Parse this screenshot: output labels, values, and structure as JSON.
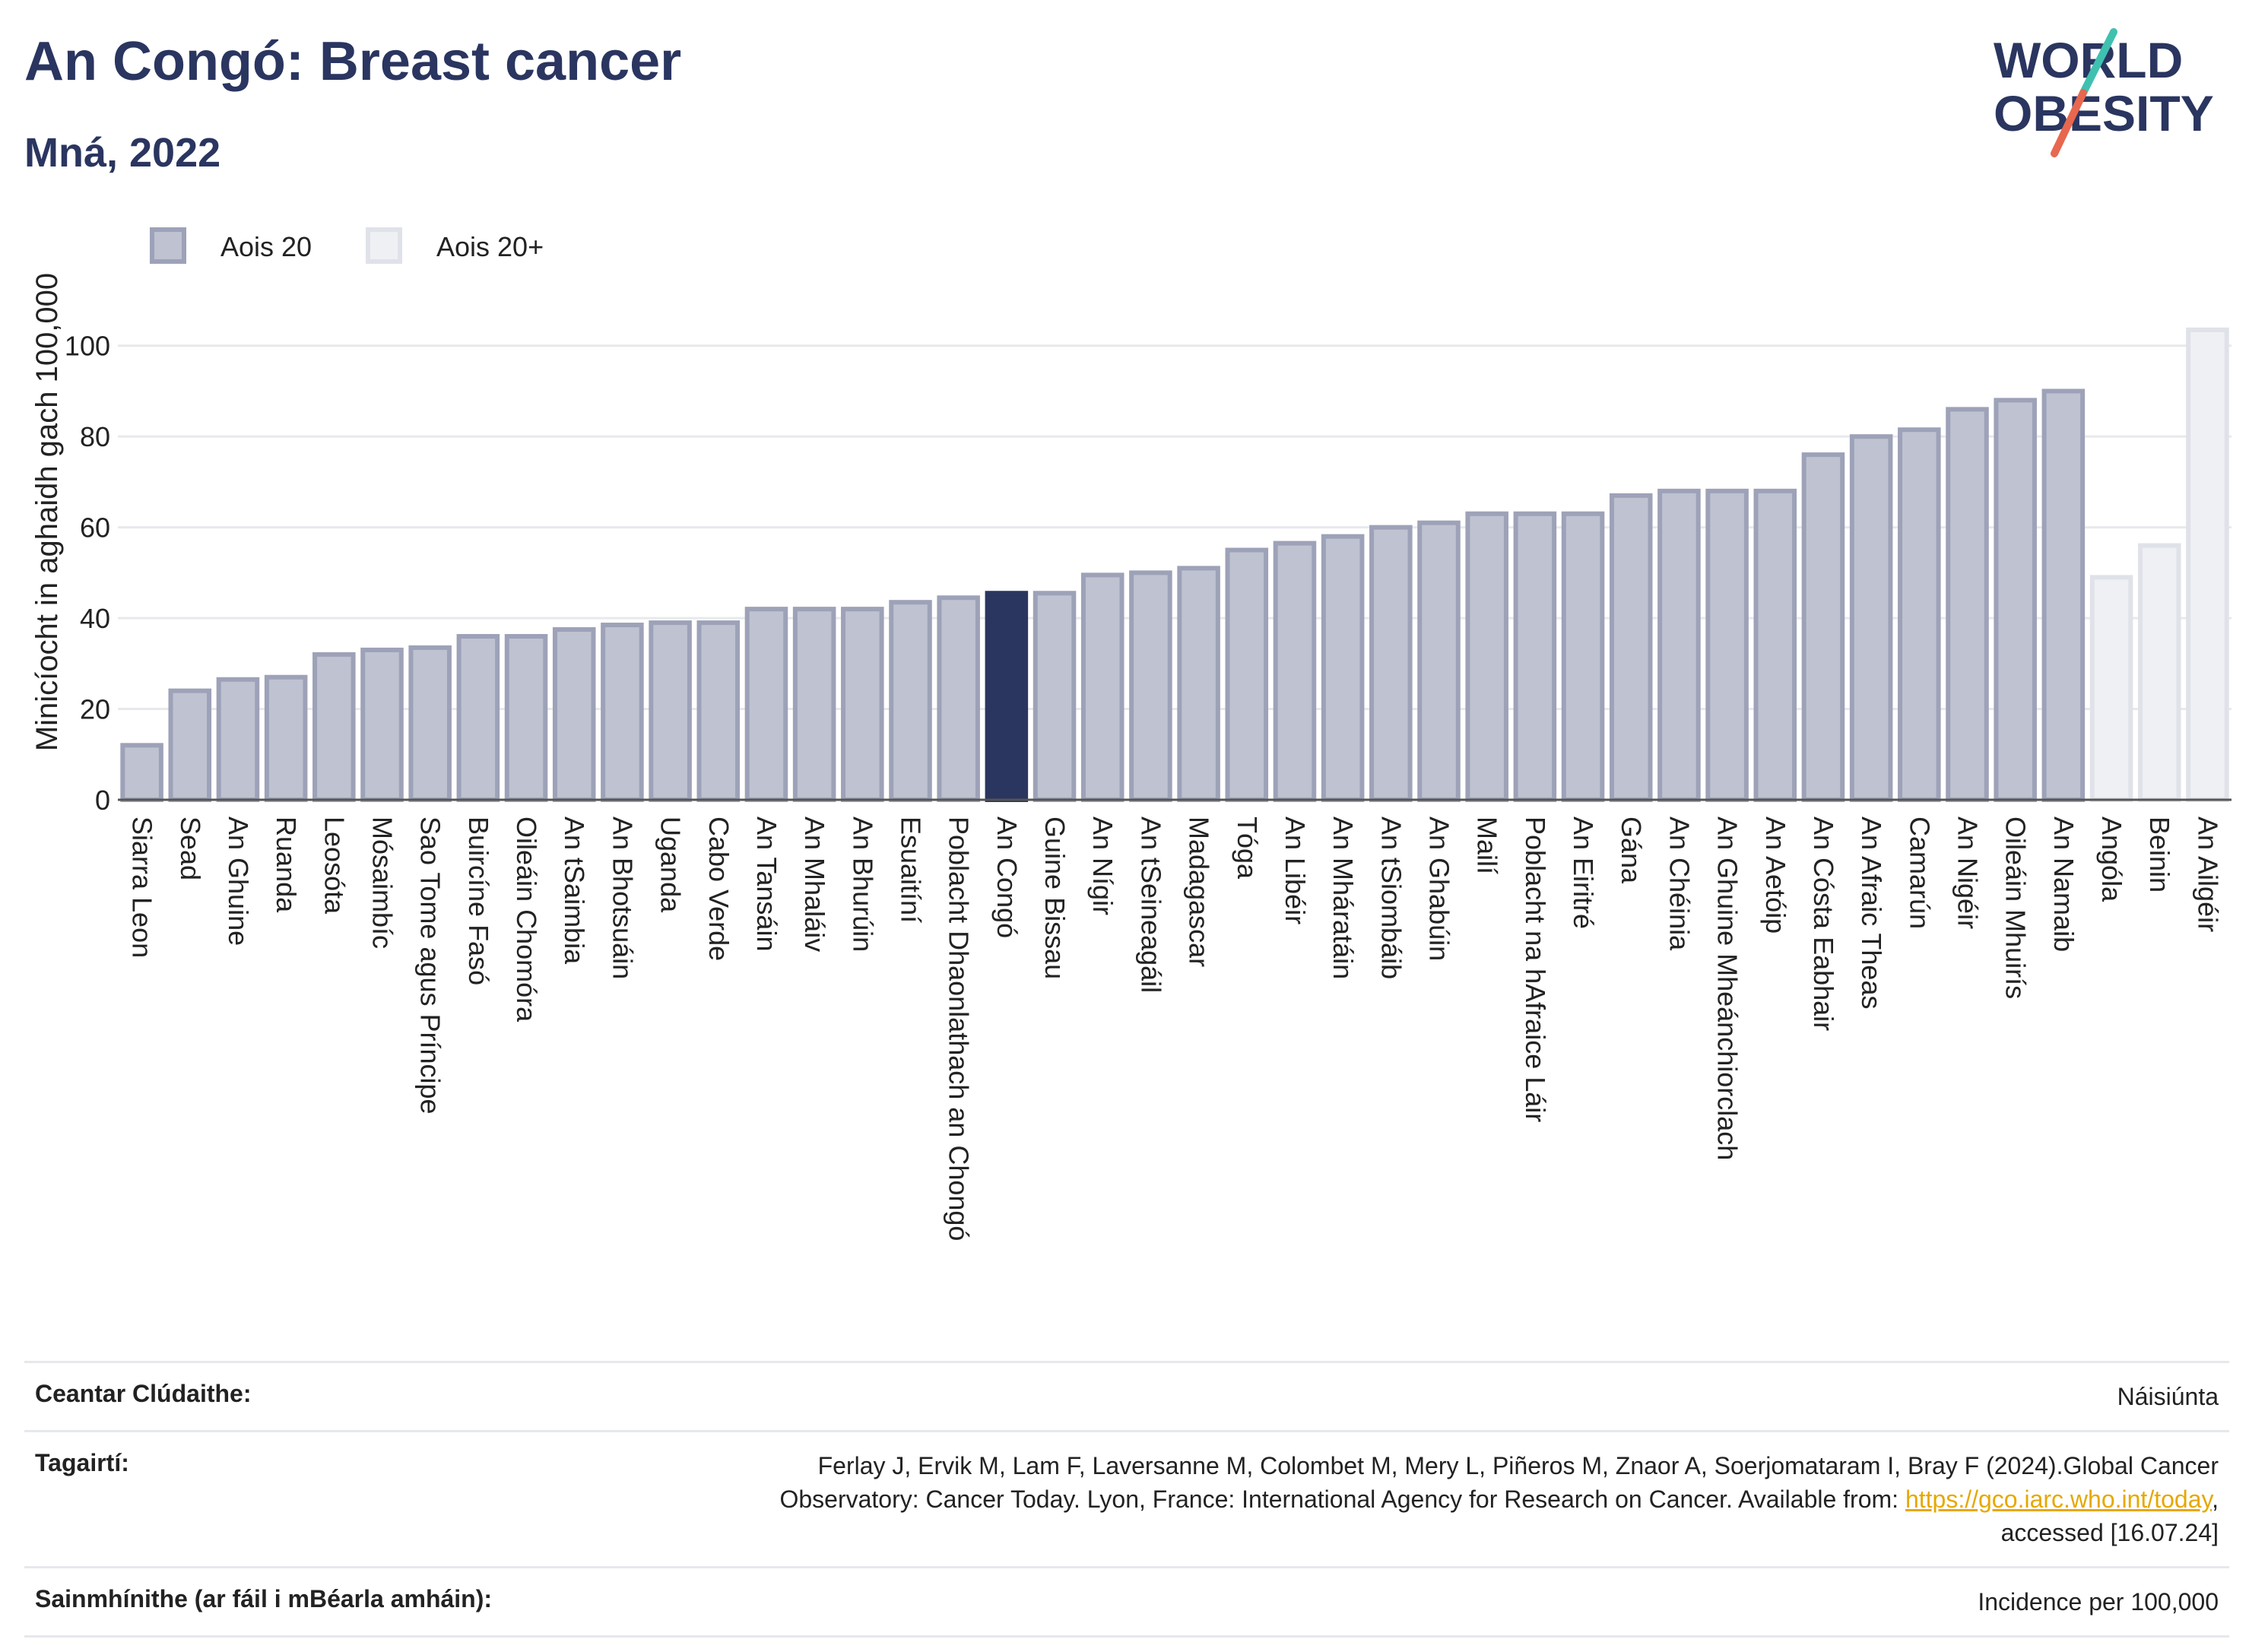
{
  "header": {
    "title": "An Congó: Breast cancer",
    "subtitle": "Mná, 2022"
  },
  "logo": {
    "line1": "WORLD",
    "line2": "OBESITY",
    "colors": {
      "text": "#2a3560",
      "slash_top": "#3fc1b0",
      "slash_bottom": "#e8674f"
    }
  },
  "colors": {
    "bar_fill": "#bfc2d1",
    "bar_stroke": "#9da2b8",
    "highlight_fill": "#2a3560",
    "light_fill": "#eef0f4",
    "light_stroke": "#e0e2e9"
  },
  "chart_data": {
    "type": "bar",
    "ylabel": "Minicíocht in aghaidh gach 100,000",
    "ylim": [
      0,
      110
    ],
    "yticks": [
      0,
      20,
      40,
      60,
      80,
      100
    ],
    "grid": true,
    "legend": {
      "placement": "top-left",
      "items": [
        {
          "label": "Aois 20",
          "style": "main"
        },
        {
          "label": "Aois 20+",
          "style": "light"
        }
      ]
    },
    "highlight": "An Congó",
    "categories": [
      "Siarra Leon",
      "Sead",
      "An Ghuine",
      "Ruanda",
      "Leosóta",
      "Mósaimbíc",
      "Sao Tome agus Príncipe",
      "Buircíne Fasó",
      "Oileáin Chomóra",
      "An tSaimbia",
      "An Bhotsuáin",
      "Uganda",
      "Cabo Verde",
      "An Tansáin",
      "An Mhaláiv",
      "An Bhurúin",
      "Esuaitíní",
      "Poblacht Dhaonlathach an Chongó",
      "An Congó",
      "Guine Bissau",
      "An Nígir",
      "An tSeineagáil",
      "Madagascar",
      "Tóga",
      "An Libéir",
      "An Mháratáin",
      "An tSiombáib",
      "An Ghabúin",
      "Mailí",
      "Poblacht na hAfraice Láir",
      "An Eiritré",
      "Gána",
      "An Chéinia",
      "An Ghuine Mheánchiorclach",
      "An Aetóip",
      "An Cósta Eabhair",
      "An Afraic Theas",
      "Camarún",
      "An Nigéir",
      "Oileáin Mhuirís",
      "An Namaib",
      "Angóla",
      "Beinin",
      "An Ailgéir"
    ],
    "values": [
      12,
      24,
      26.5,
      27,
      32,
      33,
      33.5,
      36,
      36,
      37.5,
      38.5,
      39,
      39,
      42,
      42,
      42,
      43.5,
      44.5,
      45.5,
      45.5,
      49.5,
      50,
      51,
      55,
      56.5,
      58,
      60,
      61,
      63,
      63,
      63,
      67,
      68,
      68,
      68,
      76,
      80,
      81.5,
      86,
      88,
      90,
      49,
      56,
      103.5
    ],
    "styles": [
      "main",
      "main",
      "main",
      "main",
      "main",
      "main",
      "main",
      "main",
      "main",
      "main",
      "main",
      "main",
      "main",
      "main",
      "main",
      "main",
      "main",
      "main",
      "highlight",
      "main",
      "main",
      "main",
      "main",
      "main",
      "main",
      "main",
      "main",
      "main",
      "main",
      "main",
      "main",
      "main",
      "main",
      "main",
      "main",
      "main",
      "main",
      "main",
      "main",
      "main",
      "main",
      "light",
      "light",
      "light"
    ]
  },
  "info": {
    "rows": [
      {
        "label": "Ceantar Clúdaithe:",
        "value": "Náisiúnta"
      },
      {
        "label": "Tagairtí:",
        "value_line1": "Ferlay J, Ervik M, Lam F, Laversanne M, Colombet M, Mery L, Piñeros M, Znaor A, Soerjomataram I, Bray F (2024).Global Cancer",
        "value_line2_pre": "Observatory: Cancer Today. Lyon, France: International Agency for Research on Cancer. Available from: ",
        "value_link": "https://gco.iarc.who.int/today",
        "value_line2_post": ",",
        "value_line3": "accessed [16.07.24]"
      },
      {
        "label": "Sainmhínithe (ar fáil i mBéarla amháin):",
        "value": "Incidence per 100,000"
      }
    ]
  }
}
